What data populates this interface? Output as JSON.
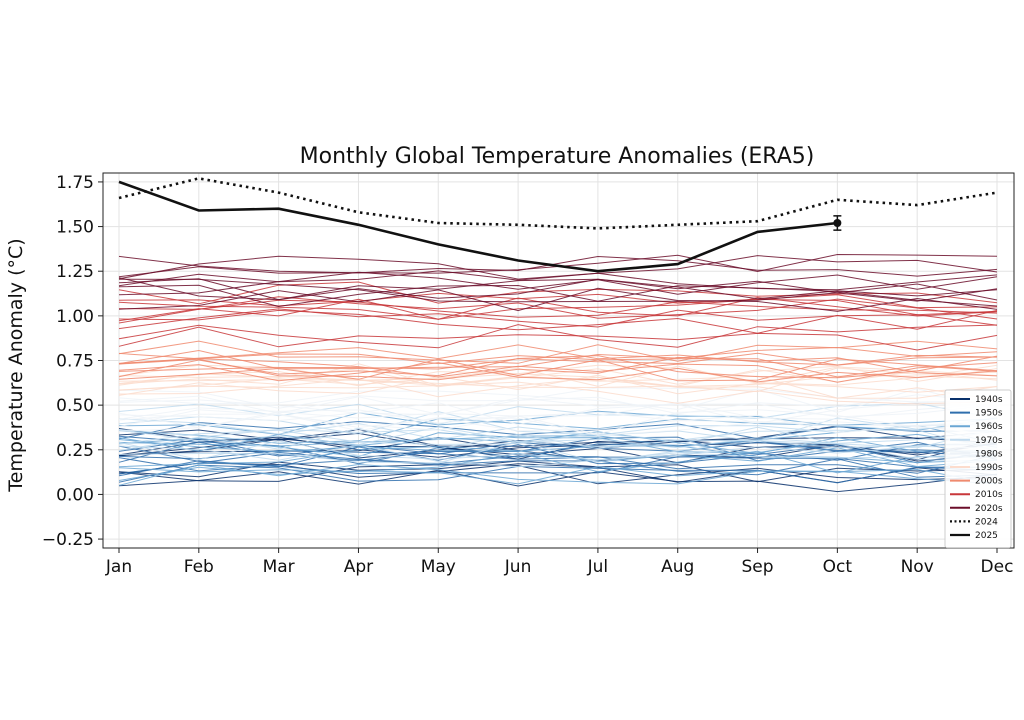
{
  "chart_data": {
    "type": "line",
    "title": "Monthly Global Temperature Anomalies (ERA5)",
    "xlabel": "",
    "ylabel": "Temperature Anomaly (°C)",
    "categories": [
      "Jan",
      "Feb",
      "Mar",
      "Apr",
      "May",
      "Jun",
      "Jul",
      "Aug",
      "Sep",
      "Oct",
      "Nov",
      "Dec"
    ],
    "ylim": [
      -0.3,
      1.8
    ],
    "yticks": [
      -0.25,
      0.0,
      0.25,
      0.5,
      0.75,
      1.0,
      1.25,
      1.5,
      1.75
    ],
    "ytick_labels": [
      "−0.25",
      "0.00",
      "0.25",
      "0.50",
      "0.75",
      "1.00",
      "1.25",
      "1.50",
      "1.75"
    ],
    "grid": true,
    "legend_position": "lower-right",
    "legend": [
      {
        "label": "1940s",
        "color": "#08306b",
        "style": "solid"
      },
      {
        "label": "1950s",
        "color": "#2f6fad",
        "style": "solid"
      },
      {
        "label": "1960s",
        "color": "#6aa6d4",
        "style": "solid"
      },
      {
        "label": "1970s",
        "color": "#c0daee",
        "style": "solid"
      },
      {
        "label": "1980s",
        "color": "#eef3f8",
        "style": "solid"
      },
      {
        "label": "1990s",
        "color": "#fcdccd",
        "style": "solid"
      },
      {
        "label": "2000s",
        "color": "#f08a6e",
        "style": "solid"
      },
      {
        "label": "2010s",
        "color": "#c8373a",
        "style": "solid"
      },
      {
        "label": "2020s",
        "color": "#6b0e2a",
        "style": "solid"
      },
      {
        "label": "2024",
        "color": "#111111",
        "style": "dotted"
      },
      {
        "label": "2025",
        "color": "#111111",
        "style": "solid"
      }
    ],
    "decade_bands": [
      {
        "decade": "1940s",
        "color": "#08306b",
        "center": 0.2,
        "spread": 0.14
      },
      {
        "decade": "1950s",
        "color": "#2f6fad",
        "center": 0.22,
        "spread": 0.15
      },
      {
        "decade": "1960s",
        "color": "#6aa6d4",
        "center": 0.25,
        "spread": 0.15
      },
      {
        "decade": "1970s",
        "color": "#c0daee",
        "center": 0.3,
        "spread": 0.16
      },
      {
        "decade": "1980s",
        "color": "#eef3f8",
        "center": 0.45,
        "spread": 0.08
      },
      {
        "decade": "1990s",
        "color": "#fcdccd",
        "center": 0.62,
        "spread": 0.07
      },
      {
        "decade": "2000s",
        "color": "#f08a6e",
        "center": 0.78,
        "spread": 0.12
      },
      {
        "decade": "2010s",
        "color": "#c8373a",
        "center": 1.0,
        "spread": 0.14
      },
      {
        "decade": "2020s",
        "color": "#6b0e2a",
        "center": 1.22,
        "spread": 0.16
      }
    ],
    "series": [
      {
        "name": "2024",
        "color": "#111111",
        "style": "dotted",
        "values": [
          1.66,
          1.77,
          1.69,
          1.58,
          1.52,
          1.51,
          1.49,
          1.51,
          1.53,
          1.65,
          1.62,
          1.69
        ]
      },
      {
        "name": "2025",
        "color": "#111111",
        "style": "solid",
        "values": [
          1.75,
          1.59,
          1.6,
          1.51,
          1.4,
          1.31,
          1.25,
          1.29,
          1.47,
          1.52,
          null,
          null
        ],
        "error_bar": {
          "month": "Oct",
          "value": 1.52,
          "err": 0.04
        }
      }
    ]
  }
}
